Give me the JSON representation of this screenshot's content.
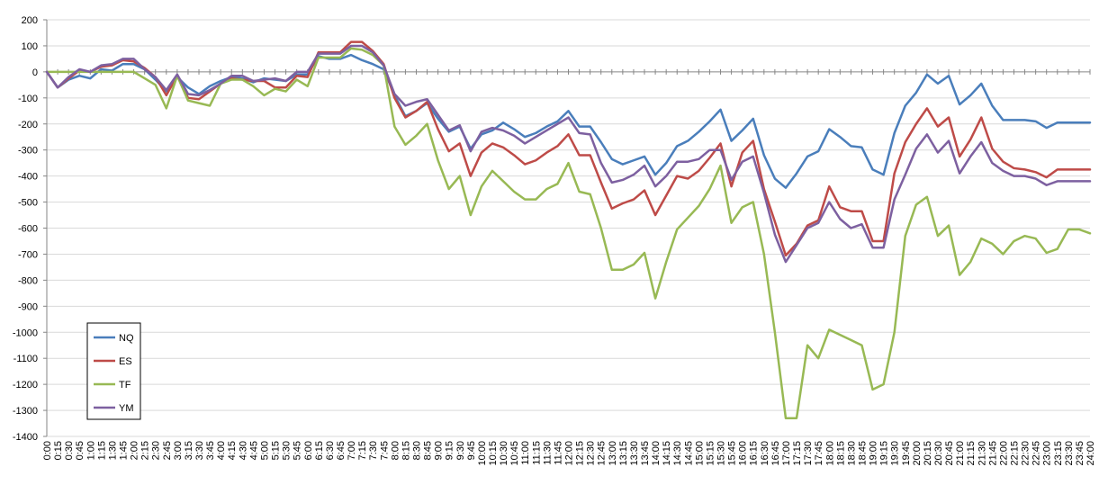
{
  "chart_data": {
    "type": "line",
    "title": "",
    "xlabel": "",
    "ylabel": "",
    "ylim": [
      -1400,
      200
    ],
    "yticks": [
      200,
      100,
      0,
      -100,
      -200,
      -300,
      -400,
      -500,
      -600,
      -700,
      -800,
      -900,
      -1000,
      -1100,
      -1200,
      -1300,
      -1400
    ],
    "grid": "horizontal",
    "legend_position": "lower-left",
    "x": [
      "0:00",
      "0:15",
      "0:30",
      "0:45",
      "1:00",
      "1:15",
      "1:30",
      "1:45",
      "2:00",
      "2:15",
      "2:30",
      "2:45",
      "3:00",
      "3:15",
      "3:30",
      "3:45",
      "4:00",
      "4:15",
      "4:30",
      "4:45",
      "5:00",
      "5:15",
      "5:30",
      "5:45",
      "6:00",
      "6:15",
      "6:30",
      "6:45",
      "7:00",
      "7:15",
      "7:30",
      "7:45",
      "8:00",
      "8:15",
      "8:30",
      "8:45",
      "9:00",
      "9:15",
      "9:30",
      "9:45",
      "10:00",
      "10:15",
      "10:30",
      "10:45",
      "11:00",
      "11:15",
      "11:30",
      "11:45",
      "12:00",
      "12:15",
      "12:30",
      "12:45",
      "13:00",
      "13:15",
      "13:30",
      "13:45",
      "14:00",
      "14:15",
      "14:30",
      "14:45",
      "15:00",
      "15:15",
      "15:30",
      "15:45",
      "16:00",
      "16:15",
      "16:30",
      "16:45",
      "17:00",
      "17:15",
      "17:30",
      "17:45",
      "18:00",
      "18:15",
      "18:30",
      "18:45",
      "19:00",
      "19:15",
      "19:30",
      "19:45",
      "20:00",
      "20:15",
      "20:30",
      "20:45",
      "21:00",
      "21:15",
      "21:30",
      "21:45",
      "22:00",
      "22:15",
      "22:30",
      "22:45",
      "23:00",
      "23:15",
      "23:30",
      "23:45",
      "24:00"
    ],
    "series": [
      {
        "name": "NQ",
        "color": "#4a7ebb",
        "values": [
          0,
          -60,
          -30,
          -15,
          -25,
          10,
          5,
          30,
          30,
          10,
          -30,
          -75,
          -20,
          -60,
          -85,
          -55,
          -35,
          -20,
          -25,
          -40,
          -25,
          -30,
          -35,
          -10,
          -10,
          60,
          50,
          50,
          65,
          45,
          30,
          10,
          -90,
          -170,
          -150,
          -120,
          -180,
          -230,
          -210,
          -295,
          -240,
          -225,
          -195,
          -220,
          -250,
          -235,
          -210,
          -190,
          -150,
          -210,
          -210,
          -270,
          -335,
          -355,
          -340,
          -325,
          -395,
          -350,
          -285,
          -265,
          -230,
          -190,
          -145,
          -265,
          -225,
          -180,
          -320,
          -410,
          -445,
          -390,
          -325,
          -305,
          -220,
          -250,
          -285,
          -290,
          -375,
          -395,
          -235,
          -130,
          -80,
          -10,
          -45,
          -15,
          -125,
          -90,
          -45,
          -130,
          -185,
          -185,
          -185,
          -190,
          -215,
          -195,
          -195,
          -195,
          -195
        ]
      },
      {
        "name": "ES",
        "color": "#be4b48",
        "values": [
          0,
          -60,
          -25,
          5,
          0,
          20,
          25,
          45,
          40,
          15,
          -20,
          -90,
          -15,
          -100,
          -105,
          -75,
          -45,
          -25,
          -30,
          -35,
          -35,
          -60,
          -60,
          -15,
          -20,
          75,
          75,
          75,
          115,
          115,
          80,
          30,
          -100,
          -175,
          -150,
          -115,
          -220,
          -305,
          -275,
          -400,
          -310,
          -275,
          -290,
          -320,
          -355,
          -340,
          -310,
          -285,
          -240,
          -320,
          -320,
          -425,
          -525,
          -505,
          -490,
          -455,
          -550,
          -475,
          -400,
          -410,
          -380,
          -330,
          -275,
          -440,
          -310,
          -265,
          -450,
          -575,
          -705,
          -660,
          -590,
          -570,
          -440,
          -520,
          -535,
          -535,
          -650,
          -650,
          -390,
          -270,
          -200,
          -140,
          -210,
          -175,
          -325,
          -260,
          -175,
          -295,
          -345,
          -370,
          -375,
          -385,
          -405,
          -375,
          -375,
          -375,
          -375
        ]
      },
      {
        "name": "TF",
        "color": "#98b954",
        "values": [
          0,
          0,
          0,
          0,
          0,
          0,
          0,
          0,
          0,
          -25,
          -50,
          -140,
          -15,
          -110,
          -120,
          -130,
          -45,
          -30,
          -30,
          -55,
          -90,
          -65,
          -75,
          -30,
          -55,
          55,
          55,
          55,
          90,
          85,
          65,
          25,
          -210,
          -280,
          -245,
          -200,
          -340,
          -450,
          -400,
          -550,
          -440,
          -380,
          -420,
          -460,
          -490,
          -490,
          -450,
          -430,
          -350,
          -460,
          -470,
          -600,
          -760,
          -760,
          -740,
          -695,
          -870,
          -730,
          -605,
          -560,
          -515,
          -450,
          -360,
          -580,
          -520,
          -500,
          -700,
          -1000,
          -1330,
          -1330,
          -1050,
          -1100,
          -990,
          -1010,
          -1030,
          -1050,
          -1220,
          -1200,
          -1000,
          -630,
          -510,
          -480,
          -630,
          -590,
          -780,
          -730,
          -640,
          -660,
          -700,
          -650,
          -630,
          -640,
          -695,
          -680,
          -605,
          -605,
          -620
        ]
      },
      {
        "name": "YM",
        "color": "#7d60a0",
        "values": [
          0,
          -60,
          -20,
          10,
          0,
          25,
          30,
          50,
          50,
          10,
          -20,
          -70,
          -10,
          -85,
          -90,
          -70,
          -45,
          -15,
          -15,
          -35,
          -30,
          -25,
          -35,
          0,
          0,
          70,
          70,
          70,
          100,
          100,
          75,
          25,
          -85,
          -130,
          -115,
          -105,
          -165,
          -225,
          -205,
          -305,
          -230,
          -215,
          -225,
          -245,
          -275,
          -250,
          -225,
          -200,
          -175,
          -235,
          -240,
          -350,
          -425,
          -415,
          -395,
          -360,
          -440,
          -400,
          -345,
          -345,
          -335,
          -300,
          -300,
          -415,
          -345,
          -325,
          -465,
          -625,
          -730,
          -665,
          -600,
          -580,
          -500,
          -565,
          -600,
          -585,
          -675,
          -675,
          -490,
          -395,
          -295,
          -240,
          -310,
          -265,
          -390,
          -325,
          -270,
          -350,
          -380,
          -400,
          -400,
          -410,
          -435,
          -420,
          -420,
          -420,
          -420
        ]
      }
    ]
  }
}
